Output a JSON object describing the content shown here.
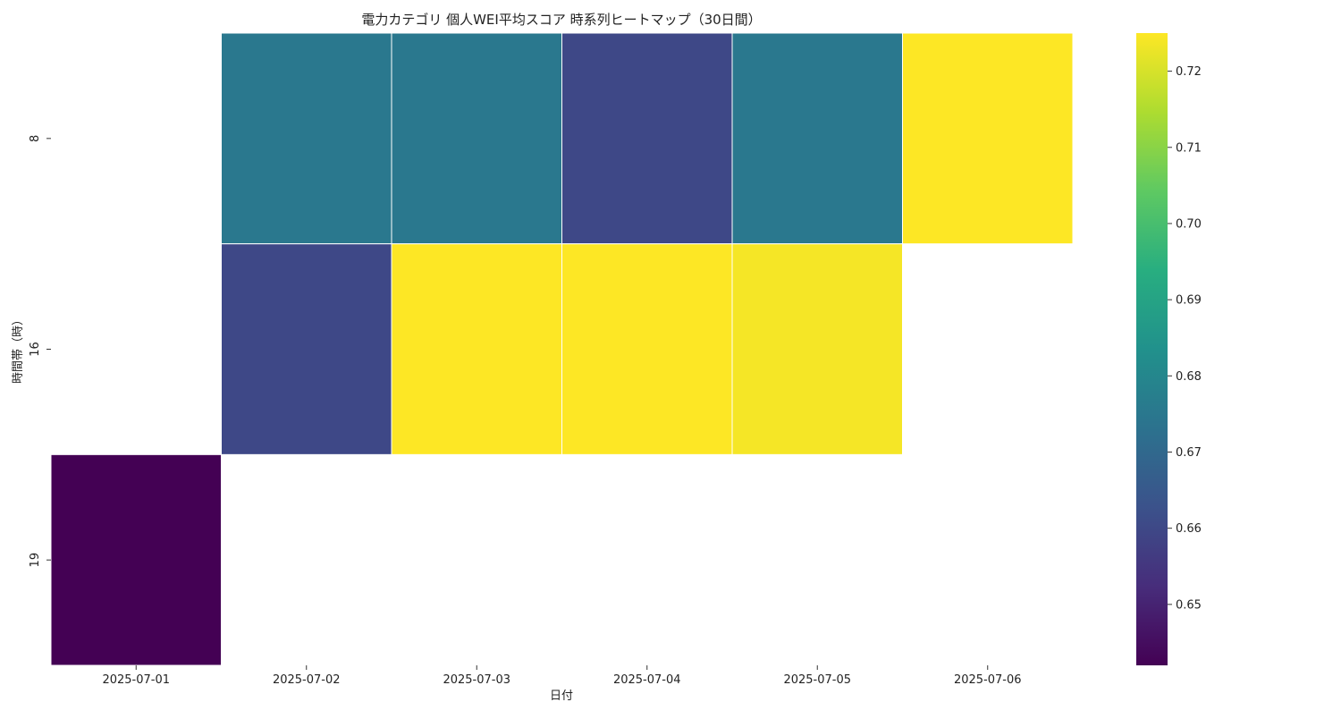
{
  "chart_data": {
    "type": "heatmap",
    "title": "電力カテゴリ 個人WEI平均スコア 時系列ヒートマップ（30日間）",
    "xlabel": "日付",
    "ylabel": "時間帯（時）",
    "x": [
      "2025-07-01",
      "2025-07-02",
      "2025-07-03",
      "2025-07-04",
      "2025-07-05",
      "2025-07-06"
    ],
    "y": [
      "8",
      "16",
      "19"
    ],
    "values": [
      [
        null,
        0.675,
        0.675,
        0.66,
        0.675,
        0.725
      ],
      [
        null,
        0.66,
        0.725,
        0.725,
        0.724,
        null
      ],
      [
        0.642,
        null,
        null,
        null,
        null,
        null
      ]
    ],
    "colormap": "viridis",
    "colorbar": {
      "min": 0.642,
      "max": 0.725,
      "ticks": [
        0.65,
        0.66,
        0.67,
        0.68,
        0.69,
        0.7,
        0.71,
        0.72
      ],
      "tick_labels": [
        "0.65",
        "0.66",
        "0.67",
        "0.68",
        "0.69",
        "0.70",
        "0.71",
        "0.72"
      ]
    }
  }
}
